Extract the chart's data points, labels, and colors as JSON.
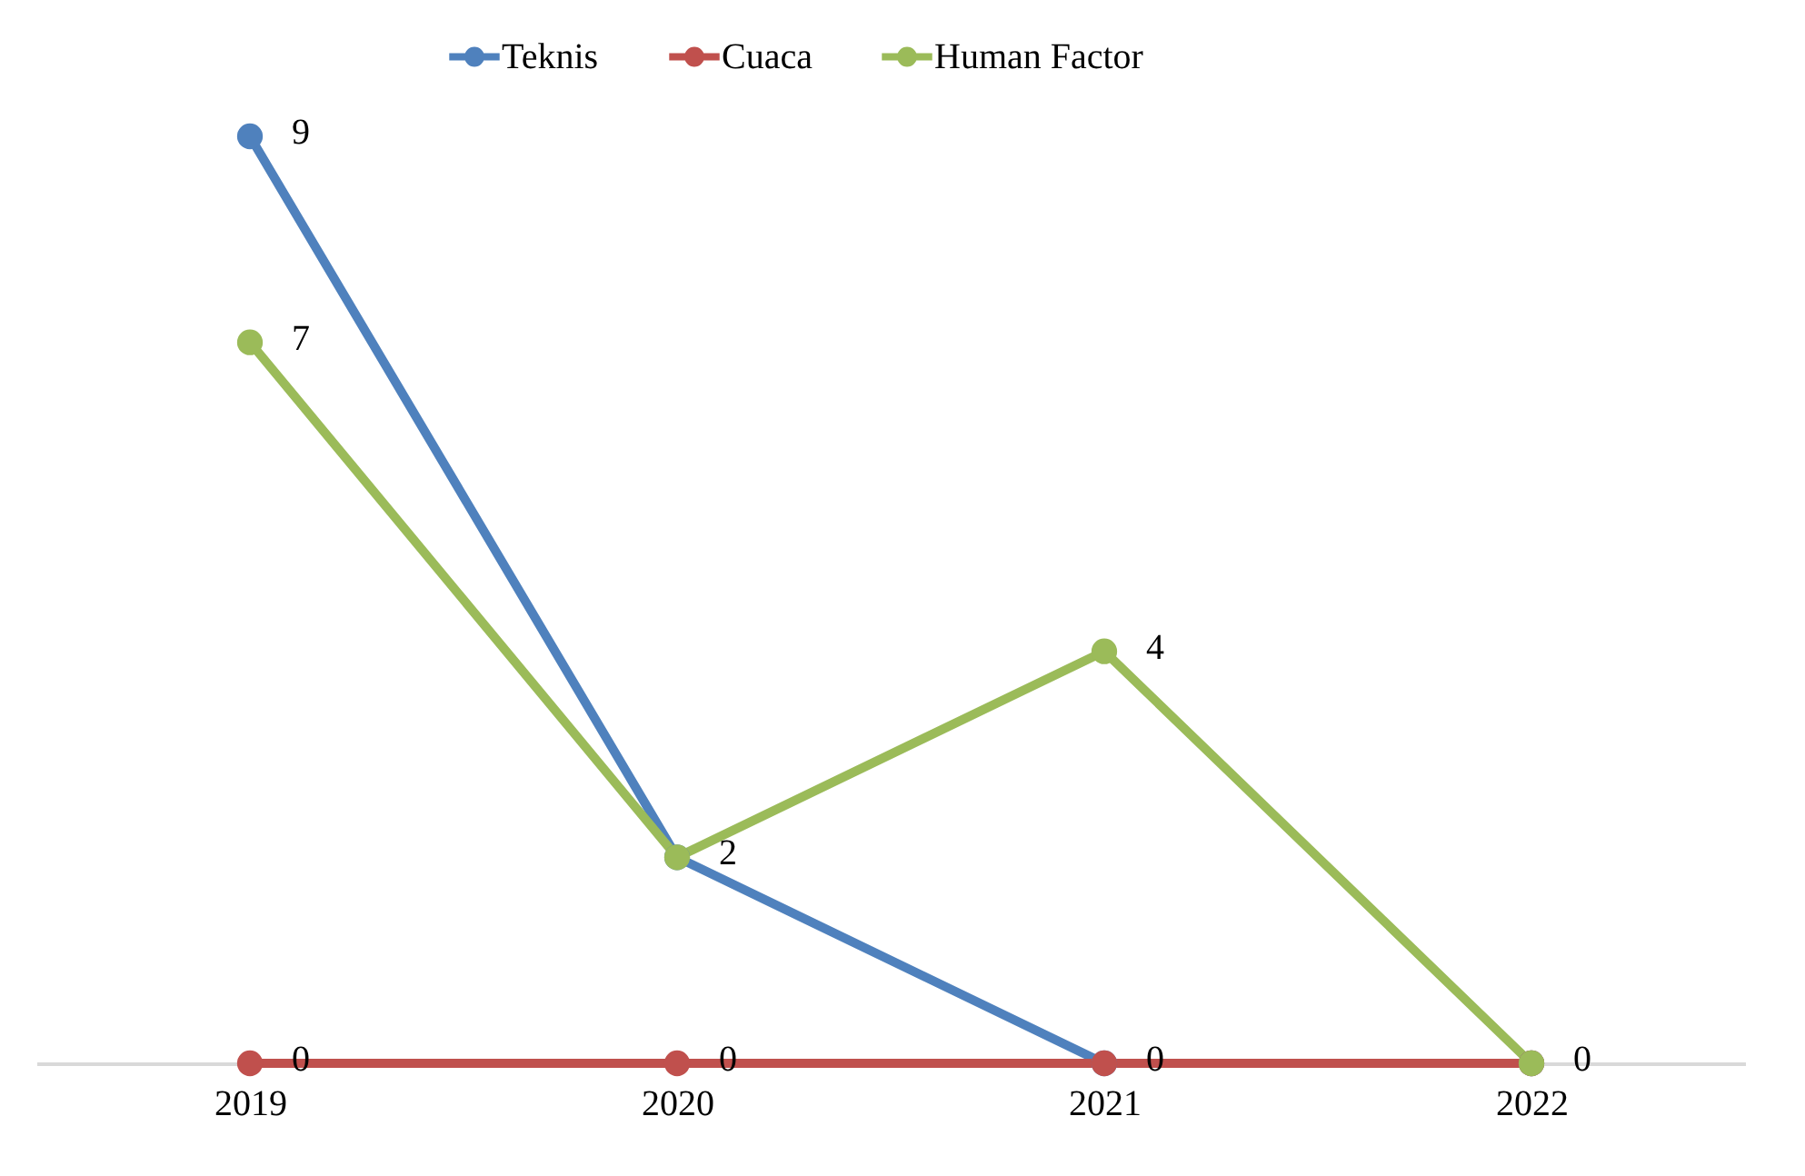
{
  "chart_data": {
    "type": "line",
    "categories": [
      "2019",
      "2020",
      "2021",
      "2022"
    ],
    "series": [
      {
        "name": "Teknis",
        "color": "#4f81bd",
        "values": [
          9,
          2,
          0,
          0
        ],
        "value_labels": [
          "9",
          "2",
          "0",
          "0"
        ]
      },
      {
        "name": "Cuaca",
        "color": "#c0504d",
        "values": [
          0,
          0,
          0,
          0
        ],
        "value_labels": [
          "0",
          "0",
          null,
          null
        ]
      },
      {
        "name": "Human Factor",
        "color": "#9bbb59",
        "values": [
          7,
          2,
          4,
          0
        ],
        "value_labels": [
          "7",
          null,
          "4",
          null
        ]
      }
    ],
    "legend": "top",
    "marker": "circle",
    "grid": false,
    "tick_labels": "x"
  }
}
